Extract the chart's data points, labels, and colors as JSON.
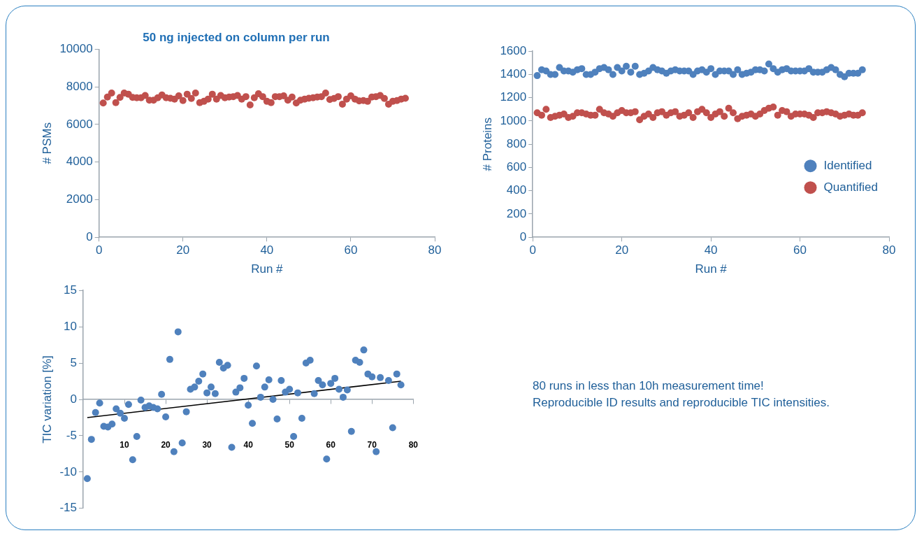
{
  "chart_data": [
    {
      "type": "scatter",
      "title": "50 ng injected on column per run",
      "xlabel": "Run #",
      "ylabel": "# PSMs",
      "marker": "circle",
      "xlim": [
        0,
        80
      ],
      "xticks": [
        0,
        20,
        40,
        60,
        80
      ],
      "ylim": [
        0,
        10000
      ],
      "yticks": [
        0,
        2000,
        4000,
        6000,
        8000,
        10000
      ],
      "x": [
        1,
        2,
        3,
        4,
        5,
        6,
        7,
        8,
        9,
        10,
        11,
        12,
        13,
        14,
        15,
        16,
        17,
        18,
        19,
        20,
        21,
        22,
        23,
        24,
        25,
        26,
        27,
        28,
        29,
        30,
        31,
        32,
        33,
        34,
        35,
        36,
        37,
        38,
        39,
        40,
        41,
        42,
        43,
        44,
        45,
        46,
        47,
        48,
        49,
        50,
        51,
        52,
        53,
        54,
        55,
        56,
        57,
        58,
        59,
        60,
        61,
        62,
        63,
        64,
        65,
        66,
        67,
        68,
        69,
        70,
        71,
        72,
        73
      ],
      "series": [
        {
          "color": "#c0504d",
          "values": [
            7140,
            7460,
            7670,
            7160,
            7440,
            7670,
            7610,
            7440,
            7420,
            7420,
            7540,
            7290,
            7290,
            7420,
            7570,
            7420,
            7390,
            7350,
            7520,
            7270,
            7610,
            7380,
            7670,
            7160,
            7230,
            7350,
            7610,
            7350,
            7540,
            7420,
            7460,
            7480,
            7540,
            7350,
            7480,
            7040,
            7420,
            7630,
            7480,
            7230,
            7160,
            7480,
            7480,
            7520,
            7290,
            7460,
            7140,
            7290,
            7350,
            7390,
            7420,
            7460,
            7480,
            7670,
            7330,
            7380,
            7480,
            7080,
            7350,
            7520,
            7350,
            7250,
            7270,
            7230,
            7460,
            7480,
            7540,
            7380,
            7080,
            7230,
            7270,
            7350,
            7390
          ]
        }
      ]
    },
    {
      "type": "scatter",
      "xlabel": "Run #",
      "ylabel": "# Proteins",
      "marker": "circle",
      "legend": "bottom right",
      "xlim": [
        0,
        80
      ],
      "xticks": [
        0,
        20,
        40,
        60,
        80
      ],
      "ylim": [
        0,
        1600
      ],
      "yticks": [
        0,
        200,
        400,
        600,
        800,
        1000,
        1200,
        1400,
        1600
      ],
      "x": [
        1,
        2,
        3,
        4,
        5,
        6,
        7,
        8,
        9,
        10,
        11,
        12,
        13,
        14,
        15,
        16,
        17,
        18,
        19,
        20,
        21,
        22,
        23,
        24,
        25,
        26,
        27,
        28,
        29,
        30,
        31,
        32,
        33,
        34,
        35,
        36,
        37,
        38,
        39,
        40,
        41,
        42,
        43,
        44,
        45,
        46,
        47,
        48,
        49,
        50,
        51,
        52,
        53,
        54,
        55,
        56,
        57,
        58,
        59,
        60,
        61,
        62,
        63,
        64,
        65,
        66,
        67,
        68,
        69,
        70,
        71,
        72,
        73,
        74
      ],
      "series": [
        {
          "name": "Identified",
          "color": "#4f81bd",
          "values": [
            1390,
            1440,
            1430,
            1400,
            1400,
            1460,
            1430,
            1430,
            1420,
            1440,
            1450,
            1400,
            1400,
            1420,
            1450,
            1460,
            1440,
            1400,
            1460,
            1430,
            1470,
            1420,
            1470,
            1400,
            1410,
            1430,
            1460,
            1440,
            1430,
            1410,
            1430,
            1440,
            1430,
            1430,
            1430,
            1400,
            1430,
            1440,
            1420,
            1450,
            1400,
            1430,
            1430,
            1430,
            1400,
            1440,
            1400,
            1410,
            1420,
            1440,
            1440,
            1430,
            1490,
            1450,
            1420,
            1440,
            1450,
            1430,
            1430,
            1430,
            1430,
            1450,
            1420,
            1420,
            1420,
            1440,
            1460,
            1440,
            1400,
            1380,
            1410,
            1410,
            1410,
            1440
          ]
        },
        {
          "name": "Quantified",
          "color": "#c0504d",
          "values": [
            1070,
            1050,
            1100,
            1030,
            1040,
            1050,
            1060,
            1030,
            1040,
            1070,
            1070,
            1060,
            1050,
            1050,
            1100,
            1070,
            1060,
            1040,
            1070,
            1090,
            1070,
            1070,
            1080,
            1010,
            1040,
            1060,
            1030,
            1070,
            1080,
            1050,
            1070,
            1080,
            1040,
            1050,
            1070,
            1030,
            1080,
            1100,
            1070,
            1030,
            1060,
            1080,
            1040,
            1110,
            1070,
            1020,
            1040,
            1050,
            1060,
            1040,
            1060,
            1090,
            1110,
            1120,
            1050,
            1090,
            1080,
            1040,
            1060,
            1060,
            1060,
            1050,
            1030,
            1070,
            1070,
            1080,
            1070,
            1060,
            1040,
            1050,
            1060,
            1050,
            1050,
            1070
          ]
        }
      ]
    },
    {
      "type": "scatter",
      "ylabel": "TIC variation [%]",
      "xlim": [
        0,
        80
      ],
      "xticks": [
        {
          "value": 0,
          "label": null
        },
        10,
        20,
        30,
        40,
        50,
        60,
        70,
        80
      ],
      "ylim": [
        -15,
        15
      ],
      "yticks": [
        -15,
        -10,
        -5,
        0,
        5,
        10,
        15
      ],
      "series": [
        {
          "color": "#4f81bd",
          "marker": "circle",
          "x": [
            1,
            2,
            3,
            4,
            5,
            6,
            7,
            8,
            9,
            10,
            11,
            12,
            13,
            14,
            15,
            16,
            17,
            18,
            19,
            20,
            21,
            22,
            23,
            24,
            25,
            26,
            27,
            28,
            29,
            30,
            31,
            32,
            33,
            34,
            35,
            36,
            37,
            38,
            39,
            40,
            41,
            42,
            43,
            44,
            45,
            46,
            47,
            48,
            49,
            50,
            51,
            52,
            53,
            54,
            55,
            56,
            57,
            58,
            59,
            60,
            61,
            62,
            63,
            64,
            65,
            66,
            67,
            68,
            69,
            70,
            71,
            72,
            74,
            75,
            76,
            77
          ],
          "values": [
            -10.9,
            -5.5,
            -1.8,
            -0.5,
            -3.7,
            -3.8,
            -3.4,
            -1.3,
            -1.9,
            -2.6,
            -0.7,
            -8.3,
            -5.1,
            -0.1,
            -1.1,
            -0.9,
            -1.1,
            -1.3,
            0.7,
            -2.4,
            5.5,
            -7.2,
            9.3,
            -6.0,
            -1.7,
            1.4,
            1.7,
            2.5,
            3.5,
            0.9,
            1.7,
            0.8,
            5.1,
            4.3,
            4.7,
            -6.6,
            1.0,
            1.6,
            2.9,
            -0.8,
            -3.3,
            4.6,
            0.3,
            1.7,
            2.7,
            0.0,
            -2.7,
            2.6,
            1.0,
            1.4,
            -5.1,
            0.9,
            -2.6,
            5.0,
            5.4,
            0.8,
            2.6,
            2.0,
            -8.2,
            2.2,
            2.9,
            1.4,
            0.3,
            1.3,
            -4.4,
            5.4,
            5.1,
            6.8,
            3.5,
            3.1,
            -7.2,
            3.0,
            2.6,
            -3.9,
            3.5,
            2.0
          ]
        },
        {
          "type": "line",
          "color": "#000000",
          "x": [
            1,
            77
          ],
          "values": [
            -2.5,
            2.5
          ]
        }
      ]
    },
    {
      "type": "other",
      "annotations": [
        "80 runs in less than 10h measurement time!",
        "Reproducible ID results and reproducible TIC intensities."
      ]
    }
  ]
}
